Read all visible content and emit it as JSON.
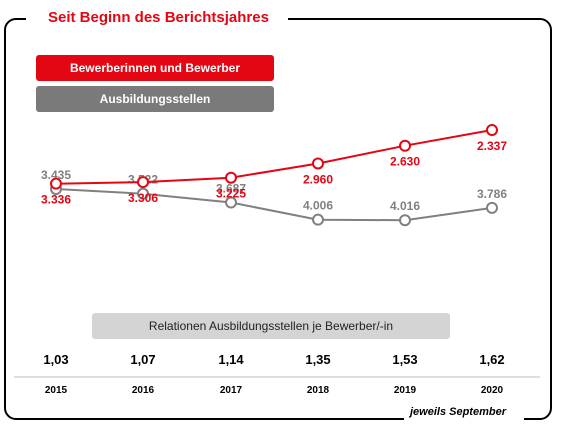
{
  "header": {
    "title": "Seit Beginn des Berichtsjahres"
  },
  "legend": {
    "applicants": "Bewerberinnen und Bewerber",
    "positions": "Ausbildungsstellen"
  },
  "relation_label": "Relationen Ausbildungsstellen je Bewerber/-in",
  "footer_note": "jeweils September",
  "colors": {
    "applicants": "#e30613",
    "positions": "#808080"
  },
  "chart_data": {
    "type": "line",
    "categories": [
      "2015",
      "2016",
      "2017",
      "2018",
      "2019",
      "2020"
    ],
    "series": [
      {
        "name": "Ausbildungsstellen",
        "values": [
          3435,
          3522,
          3687,
          4006,
          4016,
          3786
        ],
        "labels": [
          "3.435",
          "3.522",
          "3.687",
          "4.006",
          "4.016",
          "3.786"
        ]
      },
      {
        "name": "Bewerberinnen und Bewerber",
        "values": [
          3336,
          3306,
          3225,
          2960,
          2630,
          2337
        ],
        "labels": [
          "3.336",
          "3.306",
          "3.225",
          "2.960",
          "2.630",
          "2.337"
        ]
      }
    ],
    "ratios": [
      "1,03",
      "1,07",
      "1,14",
      "1,35",
      "1,53",
      "1,62"
    ],
    "ylim": [
      2200,
      4200
    ],
    "grid": false
  }
}
